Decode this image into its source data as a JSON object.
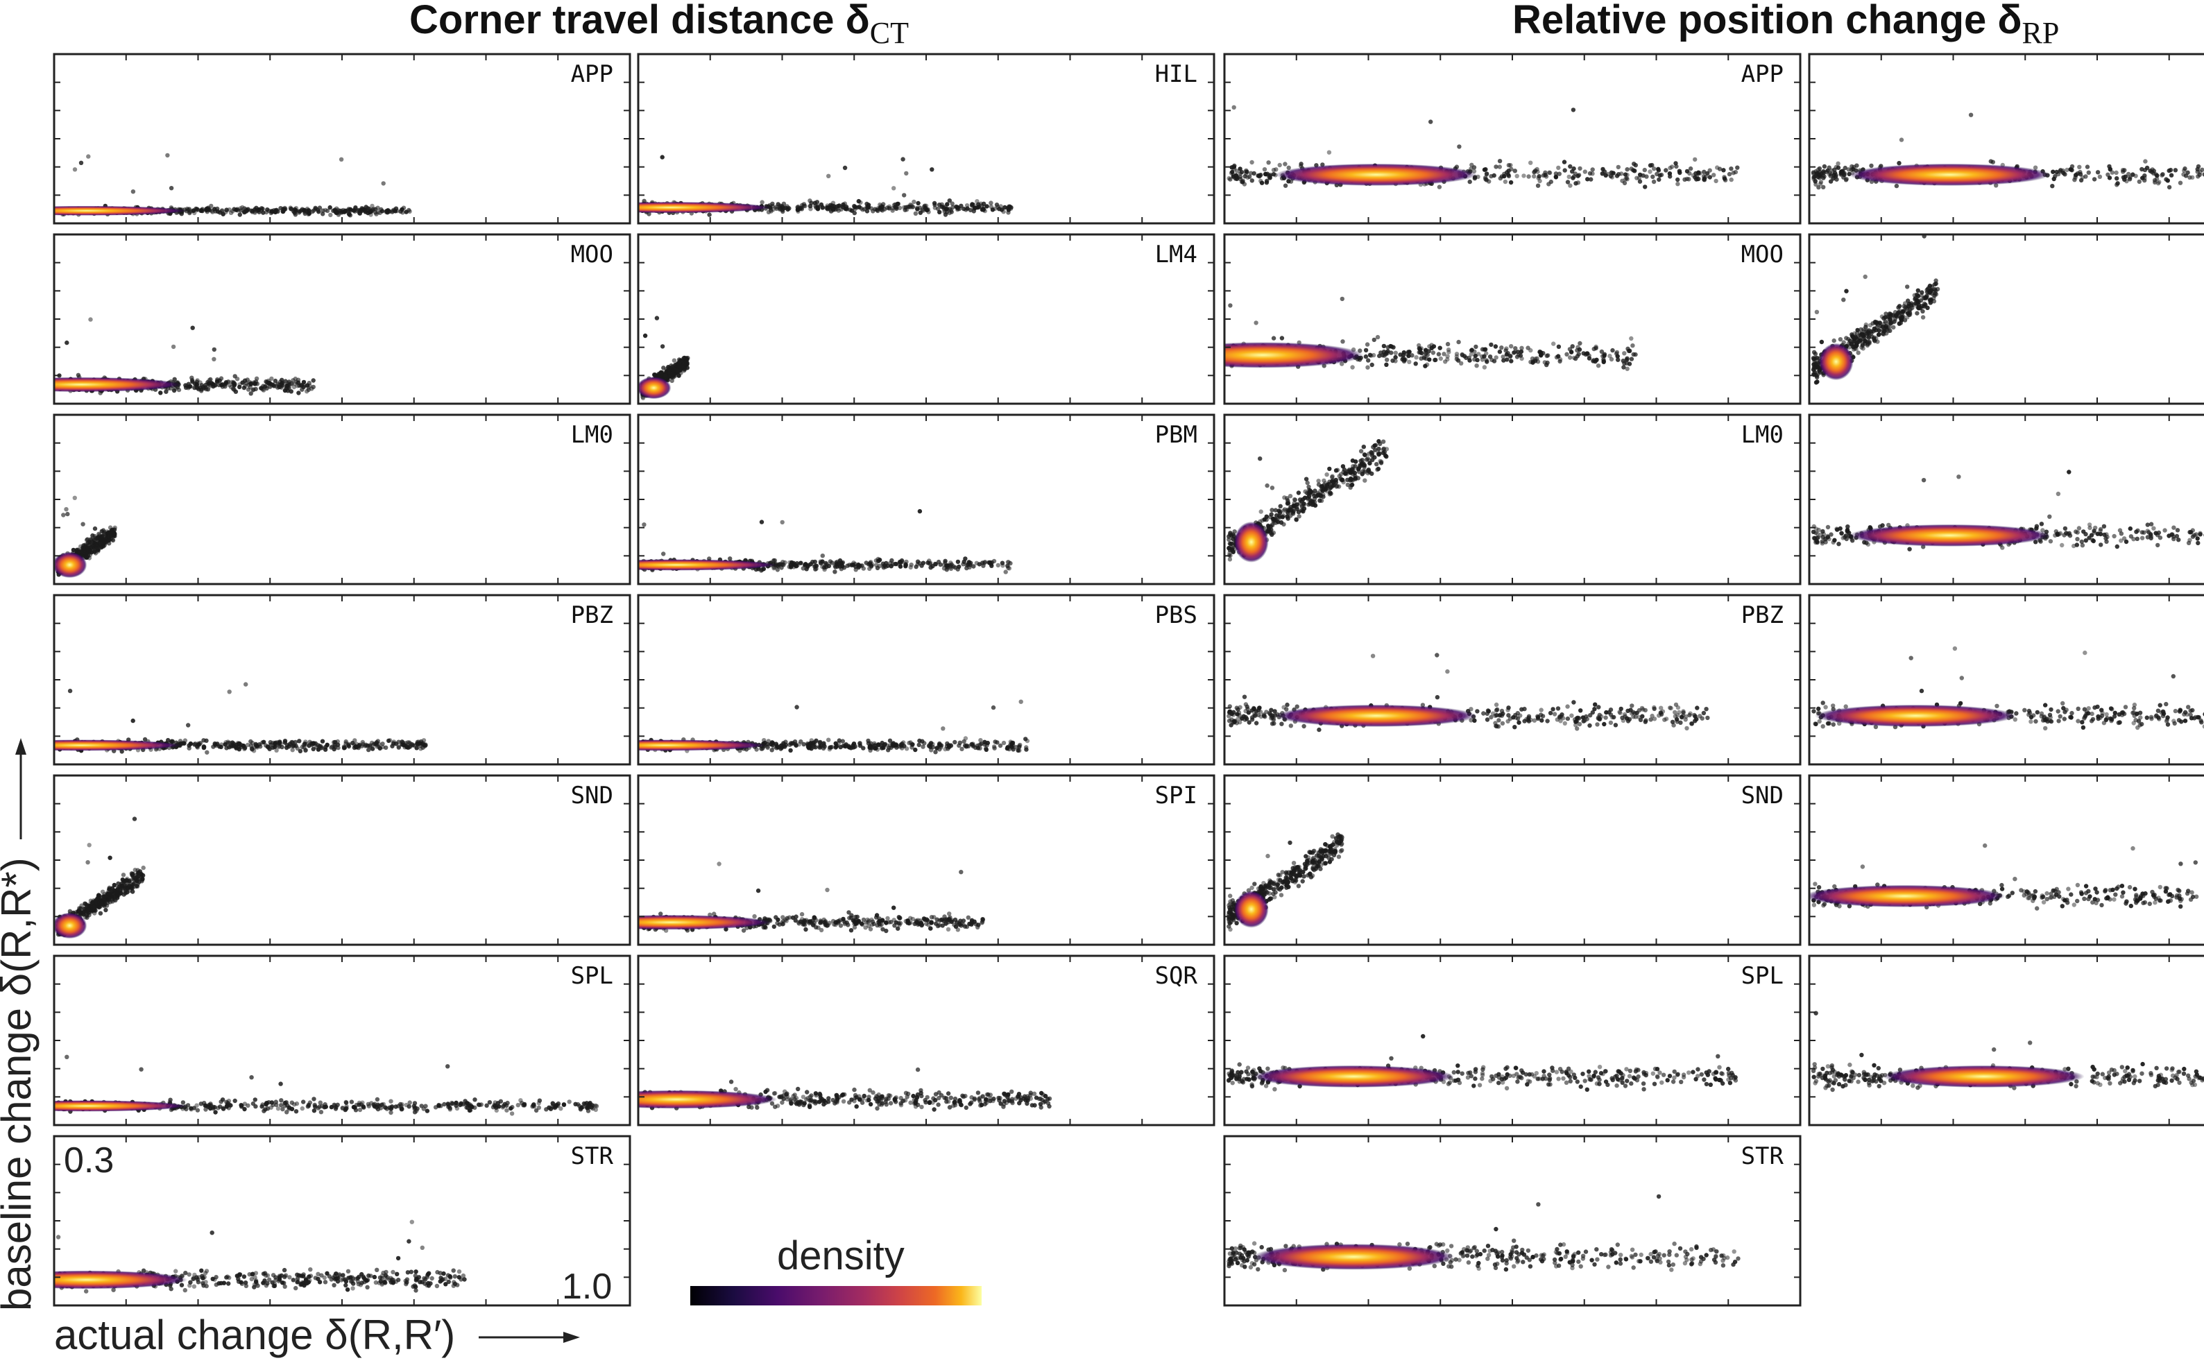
{
  "titles": {
    "left": {
      "text": "Corner travel distance δ",
      "sub": "CT"
    },
    "right": {
      "text": "Relative position change δ",
      "sub": "RP"
    }
  },
  "axis": {
    "xlabel": "actual change δ(R,R′)",
    "ylabel": "baseline change δ(R,R*)",
    "y_tick_top": "0.3",
    "x_tick_right": "1.0"
  },
  "colorbar": {
    "label": "density",
    "colormap": "inferno"
  },
  "colors": {
    "frame": "#222222",
    "tick": "#222222",
    "point_dark": "#1b1b1b",
    "dense_core": "#fbb61a"
  },
  "chart_data": [
    {
      "type": "scatter",
      "title": "Corner travel distance δCT",
      "xlabel": "actual change δ(R,R′)",
      "ylabel": "baseline change δ(R,R*)",
      "density_colored": true,
      "panels": [
        {
          "label": "APP",
          "x_max": 0.62,
          "y_center": 0.03,
          "y_spread": 0.02,
          "core_x": 0.05
        },
        {
          "label": "HIL",
          "x_max": 0.65,
          "y_center": 0.04,
          "y_spread": 0.03,
          "core_x": 0.05
        },
        {
          "label": "MOO",
          "x_max": 0.45,
          "y_center": 0.05,
          "y_spread": 0.04,
          "core_x": 0.04
        },
        {
          "label": "LM4",
          "x_max": 0.08,
          "y_center": 0.08,
          "y_spread": 0.06,
          "core_x": 0.02
        },
        {
          "label": "LM0",
          "x_max": 0.1,
          "y_center": 0.1,
          "y_spread": 0.07,
          "core_x": 0.02
        },
        {
          "label": "PBM",
          "x_max": 0.65,
          "y_center": 0.05,
          "y_spread": 0.03,
          "core_x": 0.06
        },
        {
          "label": "PBZ",
          "x_max": 0.65,
          "y_center": 0.05,
          "y_spread": 0.03,
          "core_x": 0.04
        },
        {
          "label": "PBS",
          "x_max": 0.68,
          "y_center": 0.05,
          "y_spread": 0.03,
          "core_x": 0.04
        },
        {
          "label": "SND",
          "x_max": 0.15,
          "y_center": 0.1,
          "y_spread": 0.07,
          "core_x": 0.02
        },
        {
          "label": "SPI",
          "x_max": 0.6,
          "y_center": 0.06,
          "y_spread": 0.04,
          "core_x": 0.05
        },
        {
          "label": "SPL",
          "x_max": 0.95,
          "y_center": 0.05,
          "y_spread": 0.03,
          "core_x": 0.05
        },
        {
          "label": "SQR",
          "x_max": 0.72,
          "y_center": 0.07,
          "y_spread": 0.05,
          "core_x": 0.06
        },
        {
          "label": "STR",
          "x_max": 0.72,
          "y_center": 0.07,
          "y_spread": 0.05,
          "core_x": 0.05
        }
      ]
    },
    {
      "type": "scatter",
      "title": "Relative position change δRP",
      "xlabel": "actual change δ(R,R′)",
      "ylabel": "baseline change δ(R,R*)",
      "density_colored": true,
      "panels": [
        {
          "label": "APP",
          "x_max": 0.9,
          "y_center": 0.14,
          "y_spread": 0.06,
          "core_x": 0.26
        },
        {
          "label": "",
          "x_max": 1.0,
          "y_center": 0.14,
          "y_spread": 0.06,
          "core_x": 0.24
        },
        {
          "label": "MOO",
          "x_max": 0.72,
          "y_center": 0.14,
          "y_spread": 0.07,
          "core_x": 0.06
        },
        {
          "label": "",
          "x_max": 0.22,
          "y_center": 0.24,
          "y_spread": 0.1,
          "core_x": 0.04
        },
        {
          "label": "LM0",
          "x_max": 0.28,
          "y_center": 0.24,
          "y_spread": 0.11,
          "core_x": 0.04
        },
        {
          "label": "",
          "x_max": 1.0,
          "y_center": 0.14,
          "y_spread": 0.06,
          "core_x": 0.24
        },
        {
          "label": "PBZ",
          "x_max": 0.85,
          "y_center": 0.14,
          "y_spread": 0.06,
          "core_x": 0.26
        },
        {
          "label": "",
          "x_max": 1.0,
          "y_center": 0.14,
          "y_spread": 0.06,
          "core_x": 0.18
        },
        {
          "label": "SND",
          "x_max": 0.2,
          "y_center": 0.2,
          "y_spread": 0.1,
          "core_x": 0.04
        },
        {
          "label": "",
          "x_max": 1.0,
          "y_center": 0.14,
          "y_spread": 0.06,
          "core_x": 0.16
        },
        {
          "label": "SPL",
          "x_max": 0.9,
          "y_center": 0.14,
          "y_spread": 0.06,
          "core_x": 0.22
        },
        {
          "label": "",
          "x_max": 1.0,
          "y_center": 0.14,
          "y_spread": 0.06,
          "core_x": 0.3
        },
        {
          "label": "STR",
          "x_max": 0.9,
          "y_center": 0.14,
          "y_spread": 0.07,
          "core_x": 0.22
        }
      ]
    }
  ]
}
